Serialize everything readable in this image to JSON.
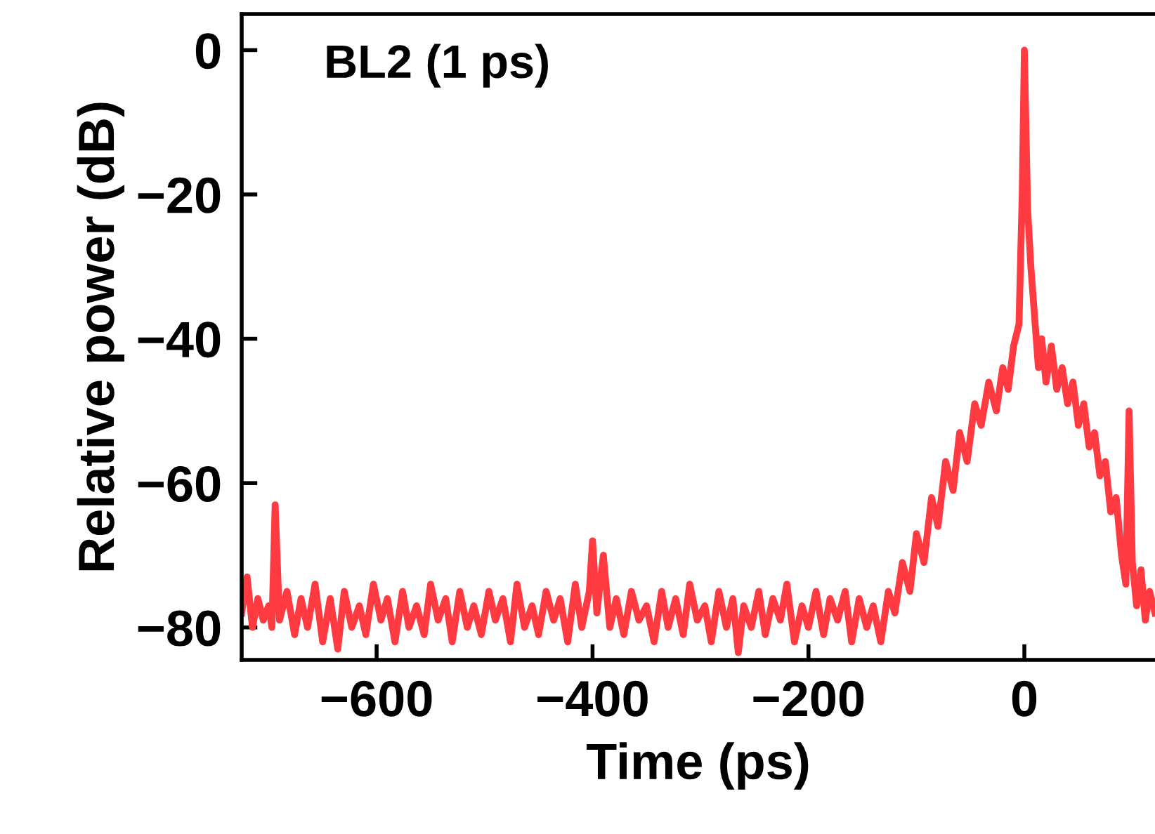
{
  "chart_data": {
    "type": "line",
    "xlabel": "Time (ps)",
    "ylabel": "Relative power (dB)",
    "annotations": [
      "BL2 (1 ps)"
    ],
    "xlim": [
      -725,
      121
    ],
    "ylim": [
      -84.5,
      5
    ],
    "xticks": [
      {
        "value": -600,
        "label": "−600"
      },
      {
        "value": -400,
        "label": "−400"
      },
      {
        "value": -200,
        "label": "−200"
      },
      0
    ],
    "yticks": [
      0,
      {
        "value": -20,
        "label": "−20"
      },
      {
        "value": -40,
        "label": "−40"
      },
      {
        "value": -60,
        "label": "−60"
      },
      {
        "value": -80,
        "label": "−80"
      }
    ],
    "grid": false,
    "legend": false,
    "marker": "none",
    "line_style": "solid",
    "series": [
      {
        "color": "#ff3b41",
        "x": [
          -725,
          -720,
          -715,
          -710,
          -705,
          -700,
          -697,
          -694,
          -690,
          -683,
          -676,
          -670,
          -664,
          -657,
          -650,
          -643,
          -636,
          -630,
          -623,
          -616,
          -610,
          -603,
          -596,
          -590,
          -583,
          -576,
          -570,
          -563,
          -556,
          -550,
          -543,
          -536,
          -530,
          -523,
          -516,
          -510,
          -503,
          -496,
          -490,
          -483,
          -476,
          -470,
          -463,
          -456,
          -450,
          -443,
          -436,
          -430,
          -423,
          -416,
          -410,
          -403,
          -400,
          -396,
          -390,
          -384,
          -378,
          -371,
          -364,
          -357,
          -350,
          -343,
          -336,
          -330,
          -323,
          -316,
          -310,
          -303,
          -296,
          -290,
          -283,
          -276,
          -270,
          -265,
          -260,
          -253,
          -246,
          -240,
          -233,
          -226,
          -220,
          -213,
          -206,
          -200,
          -193,
          -186,
          -180,
          -173,
          -166,
          -160,
          -153,
          -146,
          -140,
          -133,
          -126,
          -120,
          -113,
          -106,
          -100,
          -93,
          -86,
          -80,
          -73,
          -66,
          -60,
          -53,
          -46,
          -40,
          -33,
          -26,
          -20,
          -15,
          -10,
          -5,
          -2,
          0,
          3,
          6,
          10,
          13,
          16,
          20,
          25,
          30,
          35,
          40,
          45,
          50,
          55,
          60,
          65,
          70,
          75,
          80,
          85,
          90,
          94,
          97,
          100,
          104,
          108,
          112,
          116,
          121
        ],
        "values": [
          -78,
          -73,
          -80,
          -76,
          -79,
          -77,
          -80,
          -63,
          -79,
          -75,
          -81,
          -76,
          -80,
          -74,
          -82,
          -76,
          -83,
          -75,
          -80,
          -77,
          -81,
          -74,
          -79,
          -76,
          -82,
          -75,
          -80,
          -77,
          -81,
          -74,
          -79,
          -76,
          -82,
          -75,
          -80,
          -77,
          -81,
          -75,
          -79,
          -76,
          -82,
          -74,
          -80,
          -77,
          -81,
          -75,
          -79,
          -76,
          -82,
          -74,
          -80,
          -75,
          -68,
          -78,
          -70,
          -80,
          -76,
          -81,
          -75,
          -79,
          -77,
          -82,
          -75,
          -80,
          -76,
          -81,
          -74,
          -79,
          -77,
          -82,
          -75,
          -80,
          -76,
          -83.5,
          -77,
          -80,
          -75,
          -81,
          -76,
          -79,
          -74,
          -82,
          -77,
          -80,
          -75,
          -81,
          -76,
          -79,
          -75,
          -82,
          -76,
          -80,
          -77,
          -82,
          -75,
          -78,
          -71,
          -75,
          -67,
          -71,
          -62,
          -66,
          -57,
          -61,
          -53,
          -57,
          -49,
          -52,
          -46,
          -50,
          -44,
          -47,
          -41,
          -38,
          -20,
          0,
          -22,
          -30,
          -38,
          -44,
          -40,
          -46,
          -41,
          -47,
          -44,
          -49,
          -46,
          -52,
          -49,
          -55,
          -53,
          -59,
          -57,
          -64,
          -62,
          -70,
          -74,
          -50,
          -71,
          -77,
          -72,
          -79,
          -75,
          -78
        ]
      }
    ]
  }
}
